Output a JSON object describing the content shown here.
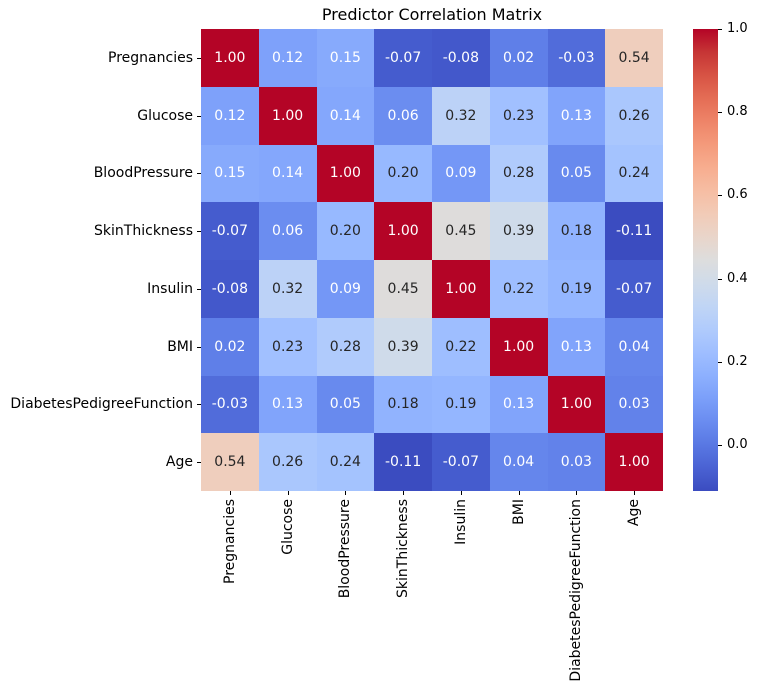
{
  "title": "Predictor Correlation Matrix",
  "chart_data": {
    "type": "heatmap",
    "title": "Predictor Correlation Matrix",
    "categories": [
      "Pregnancies",
      "Glucose",
      "BloodPressure",
      "SkinThickness",
      "Insulin",
      "BMI",
      "DiabetesPedigreeFunction",
      "Age"
    ],
    "matrix": [
      [
        1.0,
        0.12,
        0.15,
        -0.07,
        -0.08,
        0.02,
        -0.03,
        0.54
      ],
      [
        0.12,
        1.0,
        0.14,
        0.06,
        0.32,
        0.23,
        0.13,
        0.26
      ],
      [
        0.15,
        0.14,
        1.0,
        0.2,
        0.09,
        0.28,
        0.05,
        0.24
      ],
      [
        -0.07,
        0.06,
        0.2,
        1.0,
        0.45,
        0.39,
        0.18,
        -0.11
      ],
      [
        -0.08,
        0.32,
        0.09,
        0.45,
        1.0,
        0.22,
        0.19,
        -0.07
      ],
      [
        0.02,
        0.23,
        0.28,
        0.39,
        0.22,
        1.0,
        0.13,
        0.04
      ],
      [
        -0.03,
        0.13,
        0.05,
        0.18,
        0.19,
        0.13,
        1.0,
        0.03
      ],
      [
        0.54,
        0.26,
        0.24,
        -0.11,
        -0.07,
        0.04,
        0.03,
        1.0
      ]
    ],
    "value_format": ".2f",
    "colormap": "coolwarm",
    "vmin": -0.11,
    "vmax": 1.0,
    "annotation_colors": {
      "light_cells": "#262626",
      "dark_cells": "#ffffff"
    },
    "colorbar": {
      "position": "right",
      "ticks": [
        1.0,
        0.8,
        0.6,
        0.4,
        0.2,
        0.0
      ],
      "tick_labels": [
        "1.0",
        "0.8",
        "0.6",
        "0.4",
        "0.2",
        "0.0"
      ]
    },
    "grid": false,
    "legend_position": "right"
  }
}
